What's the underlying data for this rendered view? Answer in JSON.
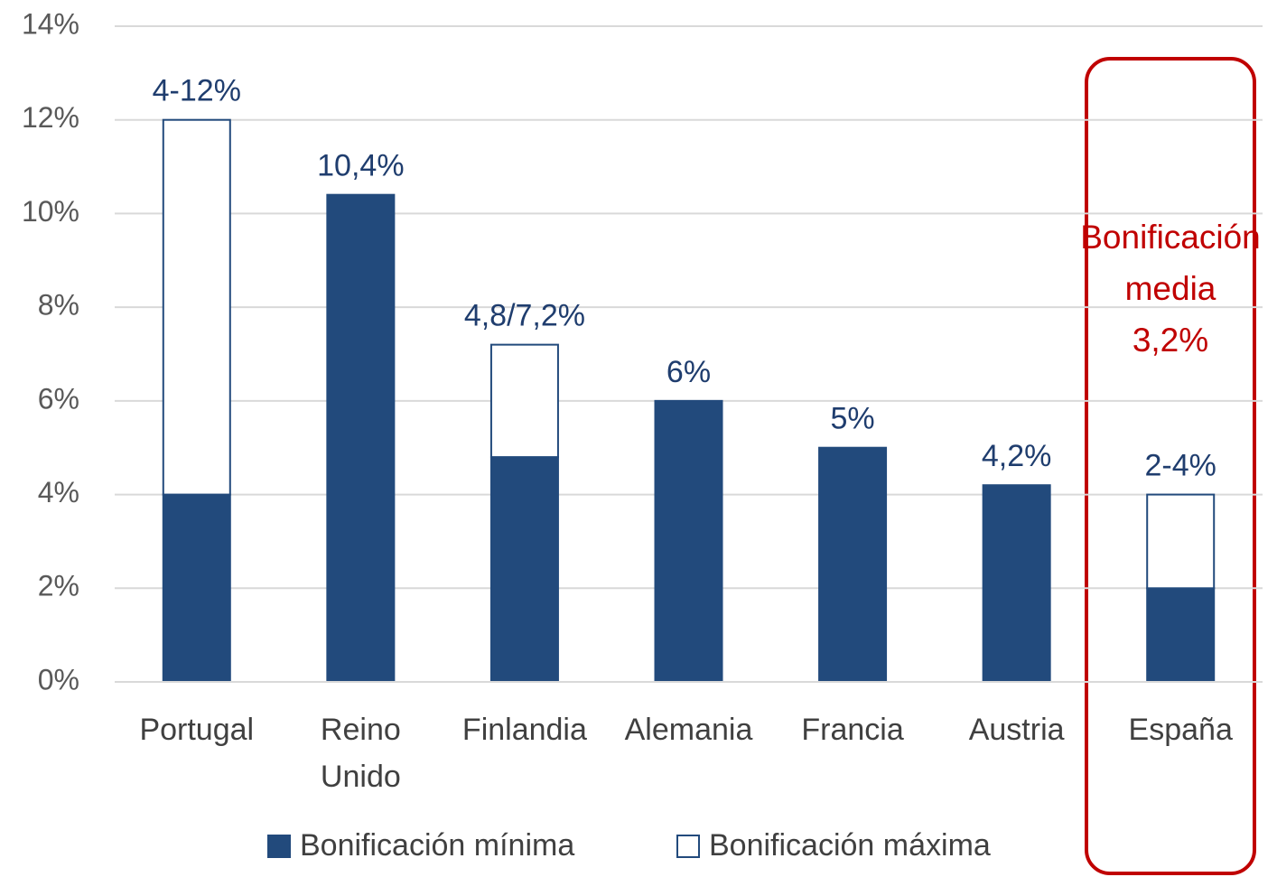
{
  "chart_data": {
    "type": "bar",
    "stacked": true,
    "categories": [
      "Portugal",
      "Reino Unido",
      "Finlandia",
      "Alemania",
      "Francia",
      "Austria",
      "España"
    ],
    "series": [
      {
        "name": "Bonificación mínima",
        "color": "#224a7c",
        "values": [
          4,
          10.4,
          4.8,
          6,
          5,
          4.2,
          2
        ]
      },
      {
        "name": "Bonificación máxima",
        "color": "#ffffff",
        "values": [
          8,
          null,
          2.4,
          null,
          null,
          null,
          2
        ]
      }
    ],
    "bar_labels": [
      "4-12%",
      "10,4%",
      "4,8/7,2%",
      "6%",
      "5%",
      "4,2%",
      "2-4%"
    ],
    "ylim": [
      0,
      14
    ],
    "yticks": [
      {
        "value": 0,
        "label": "0%"
      },
      {
        "value": 2,
        "label": "2%"
      },
      {
        "value": 4,
        "label": "4%"
      },
      {
        "value": 6,
        "label": "6%"
      },
      {
        "value": 8,
        "label": "8%"
      },
      {
        "value": 10,
        "label": "10%"
      },
      {
        "value": 12,
        "label": "12%"
      },
      {
        "value": 14,
        "label": "14%"
      }
    ],
    "grid": true,
    "legend": "bottom",
    "annotation": {
      "lines": [
        "Bonificación",
        "media",
        "3,2%"
      ],
      "color": "#c00000"
    }
  }
}
